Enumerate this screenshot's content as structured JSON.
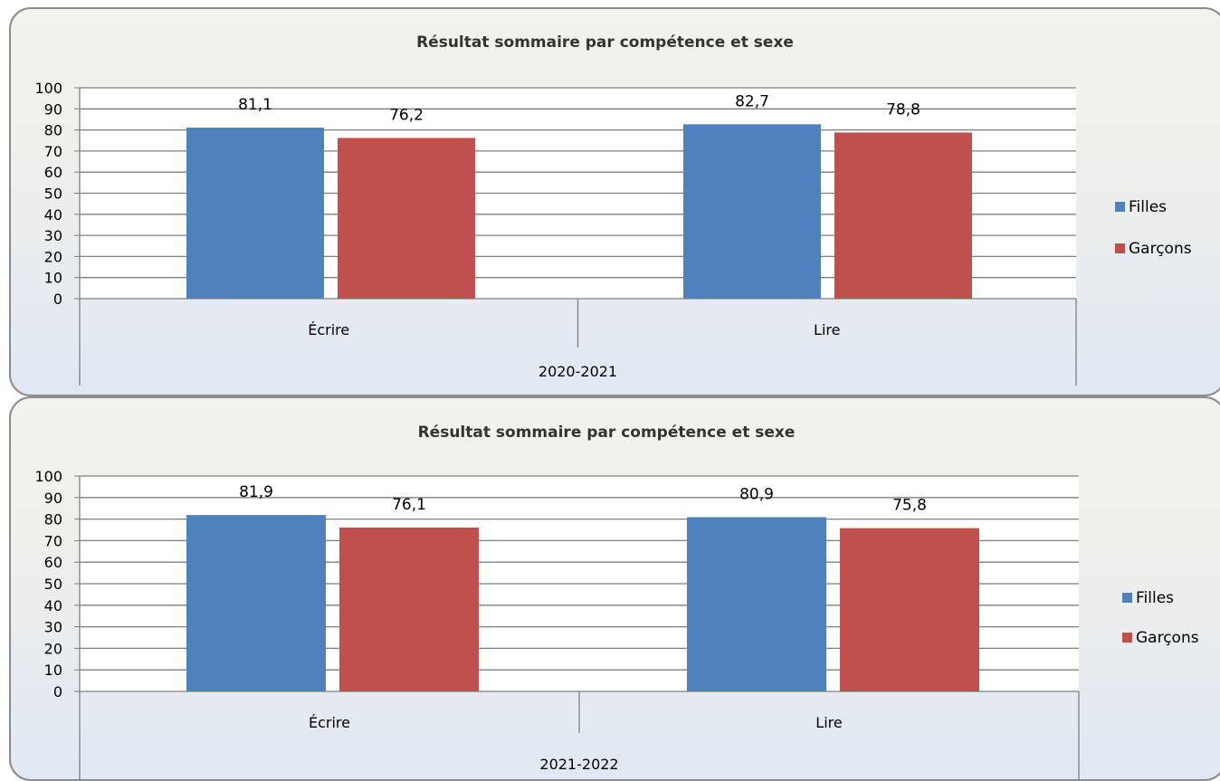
{
  "colors": {
    "Filles": "#4f81bd",
    "Garçons": "#c0504d"
  },
  "chart_data": [
    {
      "type": "bar",
      "title": "Résultat sommaire par compétence et sexe",
      "group_label": "2020-2021",
      "categories": [
        "Écrire",
        "Lire"
      ],
      "series": [
        {
          "name": "Filles",
          "values": [
            81.1,
            82.7
          ],
          "labels": [
            "81,1",
            "82,7"
          ]
        },
        {
          "name": "Garçons",
          "values": [
            76.2,
            78.8
          ],
          "labels": [
            "76,2",
            "78,8"
          ]
        }
      ],
      "ylim": [
        0,
        100
      ],
      "yticks": [
        "0",
        "10",
        "20",
        "30",
        "40",
        "50",
        "60",
        "70",
        "80",
        "90",
        "100"
      ],
      "grid": true,
      "legend_position": "right"
    },
    {
      "type": "bar",
      "title": "Résultat sommaire par compétence et sexe",
      "group_label": "2021-2022",
      "categories": [
        "Écrire",
        "Lire"
      ],
      "series": [
        {
          "name": "Filles",
          "values": [
            81.9,
            80.9
          ],
          "labels": [
            "81,9",
            "80,9"
          ]
        },
        {
          "name": "Garçons",
          "values": [
            76.1,
            75.8
          ],
          "labels": [
            "76,1",
            "75,8"
          ]
        }
      ],
      "ylim": [
        0,
        100
      ],
      "yticks": [
        "0",
        "10",
        "20",
        "30",
        "40",
        "50",
        "60",
        "70",
        "80",
        "90",
        "100"
      ],
      "grid": true,
      "legend_position": "right"
    }
  ]
}
